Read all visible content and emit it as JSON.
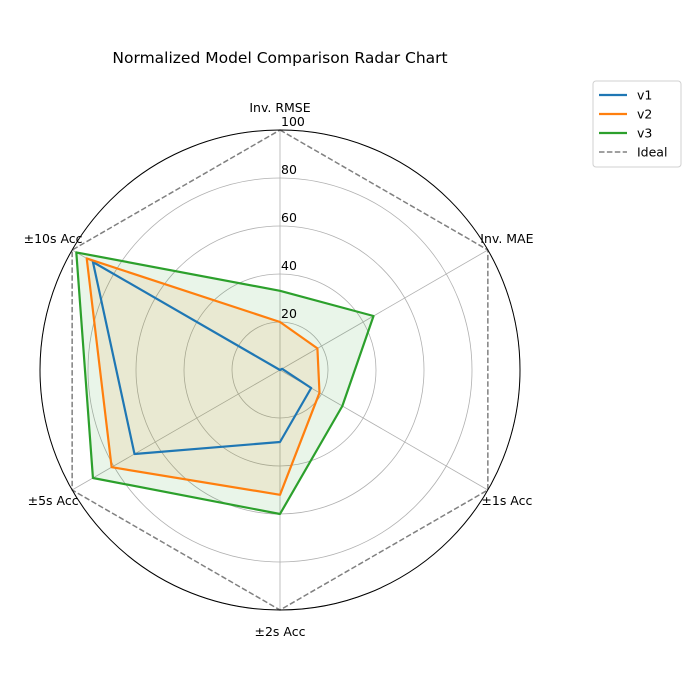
{
  "chart_data": {
    "type": "radar",
    "title": "Normalized Model Comparison Radar Chart",
    "axes": [
      "Inv. RMSE",
      "Inv. MAE",
      "±1s Acc",
      "±2s Acc",
      "±5s Acc",
      "±10s Acc"
    ],
    "rlim": [
      0,
      100
    ],
    "rticks": [
      20,
      40,
      60,
      80,
      100
    ],
    "grid": true,
    "legend_position": "upper-right-outside",
    "series": [
      {
        "name": "v1",
        "values": [
          0,
          1,
          15,
          30,
          70,
          90
        ],
        "color": "#1f77b4",
        "fill": false
      },
      {
        "name": "v2",
        "values": [
          20,
          18,
          19,
          52,
          81,
          93
        ],
        "color": "#ff7f0e",
        "fill": true
      },
      {
        "name": "v3",
        "values": [
          33,
          45,
          30,
          60,
          90,
          98
        ],
        "color": "#2ca02c",
        "fill": true
      },
      {
        "name": "Ideal",
        "values": [
          100,
          100,
          100,
          100,
          100,
          100
        ],
        "color": "#808080",
        "dashed": true,
        "fill": false
      }
    ]
  }
}
